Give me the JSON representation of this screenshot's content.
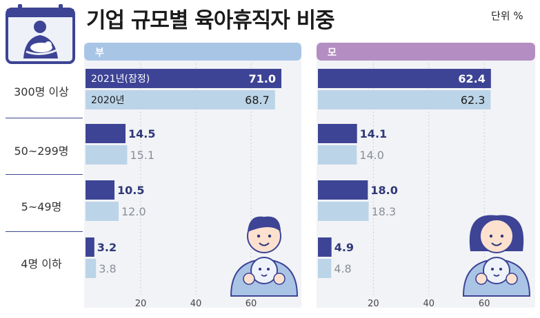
{
  "title": "기업 규모별 육아휴직자 비중",
  "unit": "단위 %",
  "colors": {
    "dark_bar": "#3d4495",
    "light_bar": "#bcd4e8",
    "father_header": "#a9c5e6",
    "mother_header": "#b48ec2",
    "panel_bg": "#f2f3f6"
  },
  "chart_data": {
    "type": "bar",
    "orientation": "horizontal",
    "categories": [
      "300명 이상",
      "50~299명",
      "5~49명",
      "4명 이하"
    ],
    "xlim": [
      0,
      80
    ],
    "x_ticks": [
      "20",
      "40",
      "60"
    ],
    "panels": [
      {
        "header": "부",
        "series": [
          {
            "name": "2021년(잠정)",
            "values": [
              71.0,
              14.5,
              10.5,
              3.2
            ]
          },
          {
            "name": "2020년",
            "values": [
              68.7,
              15.1,
              12.0,
              3.8
            ]
          }
        ]
      },
      {
        "header": "모",
        "series": [
          {
            "values": [
              62.4,
              14.1,
              18.0,
              4.9
            ]
          },
          {
            "values": [
              62.3,
              14.0,
              18.3,
              4.8
            ]
          }
        ]
      }
    ]
  }
}
